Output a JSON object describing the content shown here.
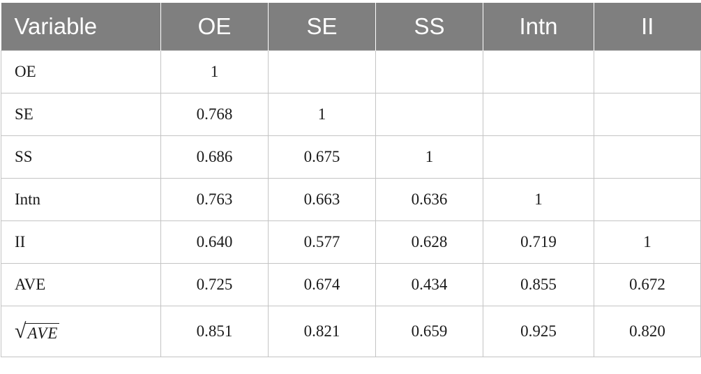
{
  "table": {
    "headers": [
      "Variable",
      "OE",
      "SE",
      "SS",
      "Intn",
      "II"
    ],
    "rows": [
      {
        "label": "OE",
        "cells": [
          "1",
          "",
          "",
          "",
          ""
        ]
      },
      {
        "label": "SE",
        "cells": [
          "0.768",
          "1",
          "",
          "",
          ""
        ]
      },
      {
        "label": "SS",
        "cells": [
          "0.686",
          "0.675",
          "1",
          "",
          ""
        ]
      },
      {
        "label": "Intn",
        "cells": [
          "0.763",
          "0.663",
          "0.636",
          "1",
          ""
        ]
      },
      {
        "label": "II",
        "cells": [
          "0.640",
          "0.577",
          "0.628",
          "0.719",
          "1"
        ]
      },
      {
        "label": "AVE",
        "cells": [
          "0.725",
          "0.674",
          "0.434",
          "0.855",
          "0.672"
        ]
      },
      {
        "label": "AVE",
        "cells": [
          "0.851",
          "0.821",
          "0.659",
          "0.925",
          "0.820"
        ]
      }
    ],
    "sqrt_symbol": "√"
  },
  "colors": {
    "header_bg": "#7f7f7f",
    "header_text": "#ffffff",
    "grid": "#c4c4c4",
    "body_text": "#1a1a1a"
  }
}
